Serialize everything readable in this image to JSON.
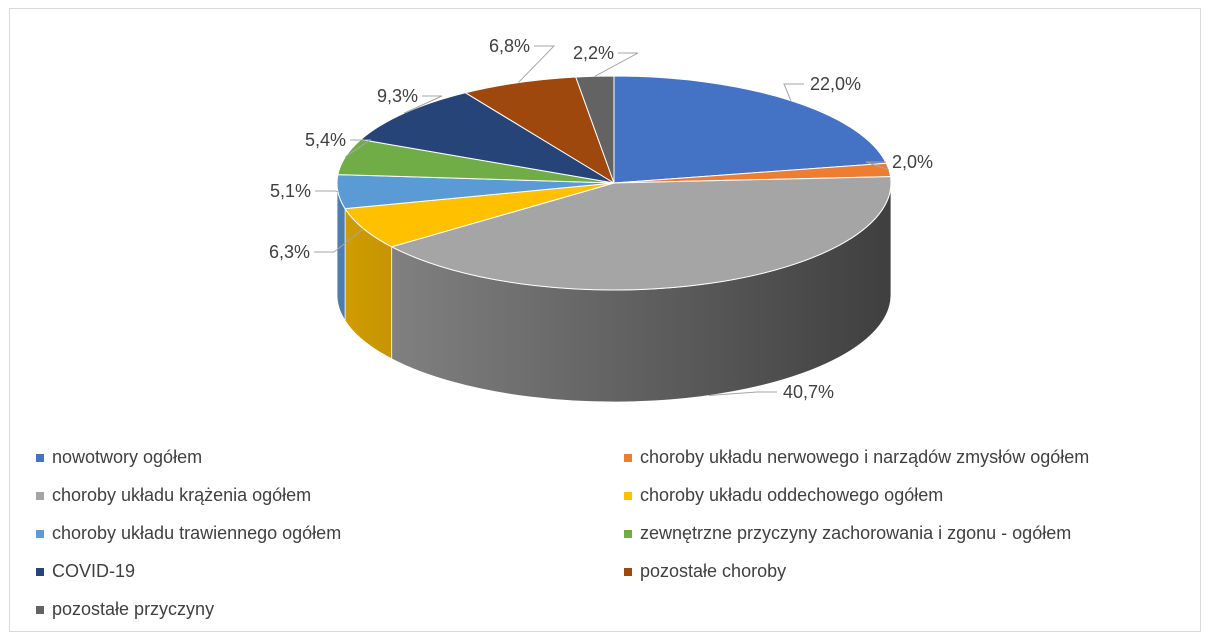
{
  "chart_data": {
    "type": "pie",
    "three_d": true,
    "legend_position": "bottom",
    "categories": [
      "nowotwory ogółem",
      "choroby układu nerwowego i narządów zmysłów ogółem",
      "choroby układu krążenia ogółem",
      "choroby układu oddechowego ogółem",
      "choroby układu trawiennego ogółem",
      "zewnętrzne przyczyny zachorowania i zgonu - ogółem",
      "COVID-19",
      "pozostałe choroby",
      "pozostałe przyczyny"
    ],
    "values": [
      22.0,
      2.0,
      40.7,
      6.3,
      5.1,
      5.4,
      9.3,
      6.8,
      2.2
    ],
    "data_labels": [
      "22,0%",
      "2,0%",
      "40,7%",
      "6,3%",
      "5,1%",
      "5,4%",
      "9,3%",
      "6,8%",
      "2,2%"
    ],
    "colors": [
      "#4472C4",
      "#ED7D31",
      "#A5A5A5",
      "#FFC000",
      "#5B9BD5",
      "#70AD47",
      "#264478",
      "#9E480E",
      "#636363"
    ]
  }
}
